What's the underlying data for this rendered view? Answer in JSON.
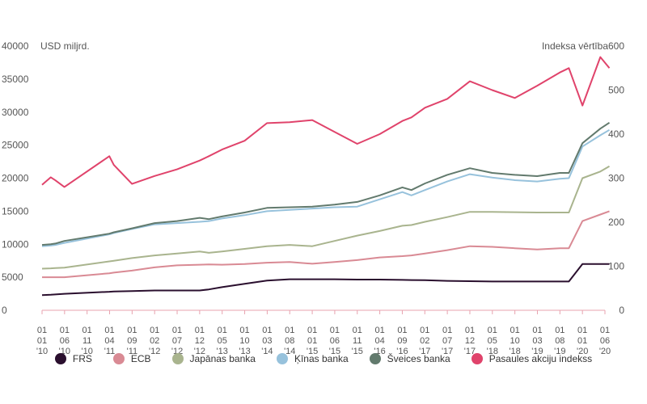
{
  "chart_data": {
    "type": "line",
    "left_axis_label": "USD miljrd.",
    "right_axis_label": "Indeksa vērtība",
    "ylim_left": [
      0,
      40000
    ],
    "ylim_right": [
      0,
      600
    ],
    "left_ticks": [
      "0",
      "5000",
      "10000",
      "15000",
      "20000",
      "25000",
      "30000",
      "35000",
      "40000"
    ],
    "right_ticks": [
      "0",
      "100",
      "200",
      "300",
      "400",
      "500",
      "600"
    ],
    "x": [
      "2010-01-01",
      "2010-03-01",
      "2010-04-01",
      "2010-06-01",
      "2011-04-01",
      "2011-05-01",
      "2011-09-01",
      "2012-02-01",
      "2012-07-01",
      "2012-12-01",
      "2013-02-01",
      "2013-05-01",
      "2013-10-01",
      "2014-03-01",
      "2014-08-01",
      "2015-01-01",
      "2015-06-01",
      "2015-11-01",
      "2016-04-01",
      "2016-09-01",
      "2016-11-01",
      "2017-02-01",
      "2017-07-01",
      "2017-12-01",
      "2018-05-01",
      "2018-10-01",
      "2019-03-01",
      "2019-08-01",
      "2019-10-01",
      "2020-01-01",
      "2020-05-01",
      "2020-07-01"
    ],
    "x_tick_labels": [
      {
        "d": "01",
        "m": "01",
        "y": "'10"
      },
      {
        "d": "01",
        "m": "06",
        "y": "'10"
      },
      {
        "d": "01",
        "m": "11",
        "y": "'10"
      },
      {
        "d": "01",
        "m": "04",
        "y": "'11"
      },
      {
        "d": "01",
        "m": "09",
        "y": "'11"
      },
      {
        "d": "01",
        "m": "02",
        "y": "'12"
      },
      {
        "d": "01",
        "m": "07",
        "y": "'12"
      },
      {
        "d": "01",
        "m": "12",
        "y": "'12"
      },
      {
        "d": "01",
        "m": "05",
        "y": "'13"
      },
      {
        "d": "01",
        "m": "10",
        "y": "'13"
      },
      {
        "d": "01",
        "m": "03",
        "y": "'14"
      },
      {
        "d": "01",
        "m": "08",
        "y": "'14"
      },
      {
        "d": "01",
        "m": "01",
        "y": "'15"
      },
      {
        "d": "01",
        "m": "06",
        "y": "'15"
      },
      {
        "d": "01",
        "m": "11",
        "y": "'15"
      },
      {
        "d": "01",
        "m": "04",
        "y": "'16"
      },
      {
        "d": "01",
        "m": "09",
        "y": "'16"
      },
      {
        "d": "01",
        "m": "02",
        "y": "'17"
      },
      {
        "d": "01",
        "m": "07",
        "y": "'17"
      },
      {
        "d": "01",
        "m": "12",
        "y": "'17"
      },
      {
        "d": "01",
        "m": "05",
        "y": "'18"
      },
      {
        "d": "01",
        "m": "10",
        "y": "'18"
      },
      {
        "d": "01",
        "m": "03",
        "y": "'19"
      },
      {
        "d": "01",
        "m": "08",
        "y": "'19"
      },
      {
        "d": "01",
        "m": "01",
        "y": "'20"
      },
      {
        "d": "01",
        "m": "06",
        "y": "'20"
      }
    ],
    "series": [
      {
        "name": "FRS",
        "axis": "left",
        "color": "#2a0f2e",
        "values": [
          2300,
          2350,
          2400,
          2500,
          2800,
          2850,
          2900,
          3000,
          3000,
          3000,
          3150,
          3500,
          4000,
          4500,
          4700,
          4700,
          4700,
          4650,
          4650,
          4600,
          4580,
          4550,
          4450,
          4400,
          4350,
          4350,
          4350,
          4350,
          4350,
          7000,
          7000,
          7000
        ]
      },
      {
        "name": "ECB",
        "axis": "left",
        "color": "#d98a94",
        "values": [
          5000,
          5000,
          5000,
          5000,
          5600,
          5700,
          6000,
          6500,
          6800,
          6900,
          6950,
          6900,
          7000,
          7200,
          7300,
          7050,
          7300,
          7600,
          8000,
          8200,
          8300,
          8600,
          9100,
          9700,
          9600,
          9400,
          9200,
          9400,
          9400,
          13500,
          14500,
          15000
        ]
      },
      {
        "name": "Japānas banka",
        "axis": "left",
        "color": "#a9b48e",
        "values": [
          6300,
          6350,
          6400,
          6450,
          7400,
          7500,
          7900,
          8300,
          8600,
          8900,
          8700,
          8900,
          9300,
          9700,
          9900,
          9700,
          10500,
          11300,
          12000,
          12800,
          12900,
          13400,
          14100,
          14900,
          14900,
          14850,
          14800,
          14800,
          14800,
          20000,
          21000,
          21800
        ]
      },
      {
        "name": "Ķīnas banka",
        "axis": "left",
        "color": "#97c2dc",
        "values": [
          9700,
          9800,
          9900,
          10200,
          11500,
          11700,
          12300,
          13000,
          13200,
          13400,
          13500,
          13900,
          14400,
          15000,
          15200,
          15400,
          15600,
          15700,
          16800,
          17900,
          17400,
          18200,
          19500,
          20600,
          20100,
          19700,
          19500,
          19900,
          20000,
          24800,
          26500,
          27300
        ]
      },
      {
        "name": "Šveices banka",
        "axis": "left",
        "color": "#627a6d",
        "values": [
          9900,
          10000,
          10100,
          10500,
          11600,
          11800,
          12400,
          13200,
          13500,
          14000,
          13800,
          14200,
          14800,
          15500,
          15600,
          15700,
          16000,
          16400,
          17400,
          18600,
          18200,
          19200,
          20500,
          21500,
          20800,
          20500,
          20300,
          20800,
          20800,
          25300,
          27500,
          28400
        ]
      },
      {
        "name": "Pasaules akciju indekss",
        "axis": "right",
        "color": "#e0436b",
        "values": [
          285,
          302,
          295,
          280,
          350,
          330,
          287,
          305,
          320,
          340,
          350,
          365,
          385,
          425,
          427,
          432,
          405,
          378,
          400,
          430,
          438,
          460,
          480,
          520,
          500,
          482,
          510,
          540,
          550,
          465,
          575,
          550
        ]
      }
    ]
  }
}
